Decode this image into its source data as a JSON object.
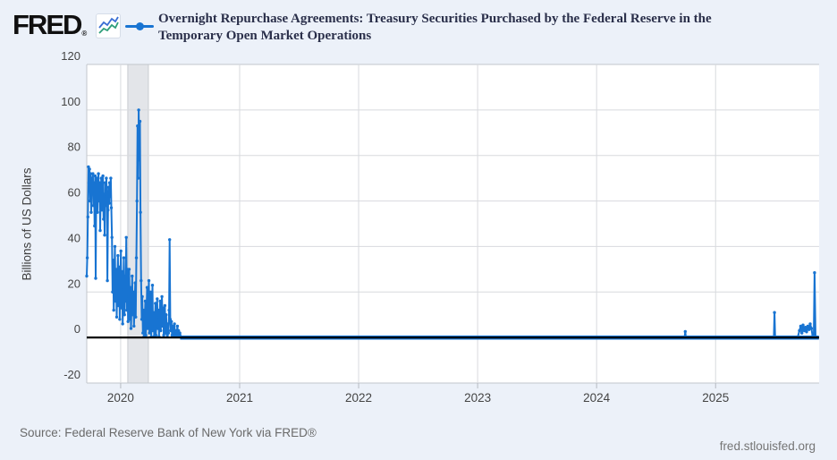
{
  "header": {
    "logo_text": "FRED",
    "logo_reg": "®",
    "title": "Overnight Repurchase Agreements: Treasury Securities Purchased by the Federal Reserve in the Temporary Open Market Operations"
  },
  "footer": {
    "source": "Source: Federal Reserve Bank of New York via FRED®",
    "site": "fred.stlouisfed.org"
  },
  "colors": {
    "background": "#ecf1f9",
    "plot_background": "#ffffff",
    "gridline": "#d8dade",
    "plot_border": "#c2c6cc",
    "tick": "#b6bac1",
    "recession_band": "#e3e5e9",
    "band_edge": "#c9ccd1",
    "zero_line": "#000000",
    "line_color": "#1874d2",
    "icon_blue": "#3b6fd4",
    "icon_green": "#2e9e7a",
    "axis_text": "#444444",
    "title_text": "#2a2f4a",
    "source_text": "#6a6a6a",
    "site_text": "#757575"
  },
  "chart_data": {
    "type": "line",
    "title": "Overnight Repurchase Agreements: Treasury Securities Purchased by the Federal Reserve in the Temporary Open Market Operations",
    "xlabel": "",
    "ylabel": "Billions of US Dollars",
    "x_ticks": [
      2020,
      2021,
      2022,
      2023,
      2024,
      2025
    ],
    "y_ticks": [
      -20,
      0,
      20,
      40,
      60,
      80,
      100,
      120
    ],
    "x_range": [
      2019.715,
      2025.87
    ],
    "y_range": [
      -20,
      120
    ],
    "grid": true,
    "legend_position": "top",
    "recession_band": [
      2020.06,
      2020.233
    ],
    "zero_line": 0,
    "flat_span": [
      2020.5,
      2025.868
    ],
    "points": [
      [
        2019.715,
        27
      ],
      [
        2019.7197,
        35
      ],
      [
        2019.7244,
        53
      ],
      [
        2019.7291,
        75
      ],
      [
        2019.7338,
        68
      ],
      [
        2019.7385,
        74
      ],
      [
        2019.7432,
        60
      ],
      [
        2019.7479,
        72
      ],
      [
        2019.7526,
        55
      ],
      [
        2019.7573,
        70
      ],
      [
        2019.762,
        64
      ],
      [
        2019.7667,
        72
      ],
      [
        2019.7714,
        58
      ],
      [
        2019.7761,
        68
      ],
      [
        2019.7808,
        49
      ],
      [
        2019.7855,
        71
      ],
      [
        2019.7902,
        26
      ],
      [
        2019.7949,
        62
      ],
      [
        2019.7996,
        70
      ],
      [
        2019.8043,
        55
      ],
      [
        2019.809,
        66
      ],
      [
        2019.8137,
        72
      ],
      [
        2019.8184,
        60
      ],
      [
        2019.8231,
        68
      ],
      [
        2019.8278,
        47
      ],
      [
        2019.8325,
        64
      ],
      [
        2019.8372,
        70
      ],
      [
        2019.8419,
        56
      ],
      [
        2019.8466,
        67
      ],
      [
        2019.8513,
        71
      ],
      [
        2019.856,
        52
      ],
      [
        2019.8607,
        63
      ],
      [
        2019.8654,
        45
      ],
      [
        2019.8701,
        68
      ],
      [
        2019.8748,
        58
      ],
      [
        2019.8795,
        70
      ],
      [
        2019.8842,
        62
      ],
      [
        2019.8889,
        25
      ],
      [
        2019.8936,
        56
      ],
      [
        2019.8983,
        66
      ],
      [
        2019.903,
        59
      ],
      [
        2019.9077,
        68
      ],
      [
        2019.9124,
        62
      ],
      [
        2019.9171,
        70
      ],
      [
        2019.9218,
        57
      ],
      [
        2019.927,
        44
      ],
      [
        2019.932,
        20
      ],
      [
        2019.937,
        34
      ],
      [
        2019.942,
        12
      ],
      [
        2019.947,
        28
      ],
      [
        2019.952,
        40
      ],
      [
        2019.957,
        16
      ],
      [
        2019.962,
        30
      ],
      [
        2019.967,
        9
      ],
      [
        2019.972,
        24
      ],
      [
        2019.977,
        36
      ],
      [
        2019.982,
        14
      ],
      [
        2019.987,
        31
      ],
      [
        2019.992,
        8
      ],
      [
        2019.997,
        26
      ],
      [
        2020.002,
        38
      ],
      [
        2020.007,
        13
      ],
      [
        2020.012,
        29
      ],
      [
        2020.017,
        6
      ],
      [
        2020.022,
        21
      ],
      [
        2020.027,
        35
      ],
      [
        2020.032,
        10
      ],
      [
        2020.037,
        27
      ],
      [
        2020.042,
        16
      ],
      [
        2020.047,
        44
      ],
      [
        2020.052,
        12
      ],
      [
        2020.057,
        30
      ],
      [
        2020.062,
        7
      ],
      [
        2020.067,
        18
      ],
      [
        2020.072,
        30
      ],
      [
        2020.077,
        8
      ],
      [
        2020.082,
        22
      ],
      [
        2020.087,
        4
      ],
      [
        2020.092,
        15
      ],
      [
        2020.097,
        27
      ],
      [
        2020.102,
        10
      ],
      [
        2020.107,
        20
      ],
      [
        2020.112,
        5
      ],
      [
        2020.117,
        13
      ],
      [
        2020.122,
        24
      ],
      [
        2020.127,
        9
      ],
      [
        2020.132,
        35
      ],
      [
        2020.137,
        60
      ],
      [
        2020.142,
        93
      ],
      [
        2020.147,
        70
      ],
      [
        2020.152,
        100
      ],
      [
        2020.157,
        78
      ],
      [
        2020.162,
        95
      ],
      [
        2020.167,
        55
      ],
      [
        2020.172,
        25
      ],
      [
        2020.177,
        8
      ],
      [
        2020.182,
        18
      ],
      [
        2020.187,
        2
      ],
      [
        2020.192,
        12
      ],
      [
        2020.197,
        0.5
      ],
      [
        2020.202,
        6
      ],
      [
        2020.207,
        16
      ],
      [
        2020.212,
        1
      ],
      [
        2020.217,
        10
      ],
      [
        2020.222,
        22
      ],
      [
        2020.227,
        4
      ],
      [
        2020.232,
        14
      ],
      [
        2020.237,
        25
      ],
      [
        2020.242,
        2
      ],
      [
        2020.247,
        9
      ],
      [
        2020.252,
        20
      ],
      [
        2020.257,
        0.5
      ],
      [
        2020.262,
        7
      ],
      [
        2020.267,
        23
      ],
      [
        2020.272,
        3
      ],
      [
        2020.277,
        11
      ],
      [
        2020.282,
        0.5
      ],
      [
        2020.287,
        5
      ],
      [
        2020.292,
        15
      ],
      [
        2020.297,
        1
      ],
      [
        2020.302,
        9
      ],
      [
        2020.307,
        17
      ],
      [
        2020.312,
        4
      ],
      [
        2020.317,
        12
      ],
      [
        2020.322,
        0.5
      ],
      [
        2020.327,
        8
      ],
      [
        2020.332,
        16
      ],
      [
        2020.337,
        3
      ],
      [
        2020.342,
        11
      ],
      [
        2020.347,
        18
      ],
      [
        2020.352,
        5
      ],
      [
        2020.357,
        13
      ],
      [
        2020.362,
        1
      ],
      [
        2020.367,
        7
      ],
      [
        2020.372,
        14
      ],
      [
        2020.377,
        2
      ],
      [
        2020.382,
        10
      ],
      [
        2020.387,
        4
      ],
      [
        2020.392,
        1
      ],
      [
        2020.397,
        6
      ],
      [
        2020.402,
        2
      ],
      [
        2020.407,
        12
      ],
      [
        2020.412,
        43
      ],
      [
        2020.417,
        8
      ],
      [
        2020.422,
        3
      ],
      [
        2020.427,
        7
      ],
      [
        2020.432,
        1
      ],
      [
        2020.437,
        5
      ],
      [
        2020.442,
        0.5
      ],
      [
        2020.447,
        4
      ],
      [
        2020.452,
        6
      ],
      [
        2020.457,
        1
      ],
      [
        2020.462,
        3
      ],
      [
        2020.467,
        0.5
      ],
      [
        2020.472,
        2
      ],
      [
        2020.477,
        5
      ],
      [
        2020.482,
        1
      ],
      [
        2020.487,
        3
      ],
      [
        2020.492,
        0.5
      ],
      [
        2020.497,
        2
      ],
      [
        2020.51,
        0
      ],
      [
        2020.65,
        0
      ],
      [
        2020.8,
        0
      ],
      [
        2020.95,
        0
      ],
      [
        2021.1,
        0
      ],
      [
        2021.25,
        0
      ],
      [
        2021.4,
        0
      ],
      [
        2021.55,
        0
      ],
      [
        2021.7,
        0
      ],
      [
        2021.85,
        0
      ],
      [
        2022.0,
        0
      ],
      [
        2022.15,
        0
      ],
      [
        2022.3,
        0
      ],
      [
        2022.45,
        0
      ],
      [
        2022.6,
        0
      ],
      [
        2022.75,
        0
      ],
      [
        2022.9,
        0
      ],
      [
        2023.05,
        0
      ],
      [
        2023.2,
        0
      ],
      [
        2023.35,
        0
      ],
      [
        2023.5,
        0
      ],
      [
        2023.65,
        0
      ],
      [
        2023.8,
        0
      ],
      [
        2023.95,
        0
      ],
      [
        2024.1,
        0
      ],
      [
        2024.25,
        0
      ],
      [
        2024.4,
        0
      ],
      [
        2024.55,
        0
      ],
      [
        2024.7,
        0
      ],
      [
        2024.74,
        0
      ],
      [
        2024.745,
        2.6
      ],
      [
        2024.75,
        0
      ],
      [
        2024.9,
        0
      ],
      [
        2025.05,
        0
      ],
      [
        2025.2,
        0
      ],
      [
        2025.35,
        0
      ],
      [
        2025.49,
        0
      ],
      [
        2025.495,
        11
      ],
      [
        2025.5,
        0
      ],
      [
        2025.6,
        0
      ],
      [
        2025.69,
        0
      ],
      [
        2025.705,
        3
      ],
      [
        2025.715,
        5
      ],
      [
        2025.725,
        2
      ],
      [
        2025.735,
        5.5
      ],
      [
        2025.745,
        3
      ],
      [
        2025.755,
        4.5
      ],
      [
        2025.765,
        2.5
      ],
      [
        2025.775,
        5
      ],
      [
        2025.785,
        3.5
      ],
      [
        2025.795,
        6
      ],
      [
        2025.805,
        4
      ],
      [
        2025.815,
        0.5
      ],
      [
        2025.825,
        0
      ],
      [
        2025.832,
        28.5
      ],
      [
        2025.84,
        0
      ],
      [
        2025.855,
        0
      ]
    ]
  }
}
